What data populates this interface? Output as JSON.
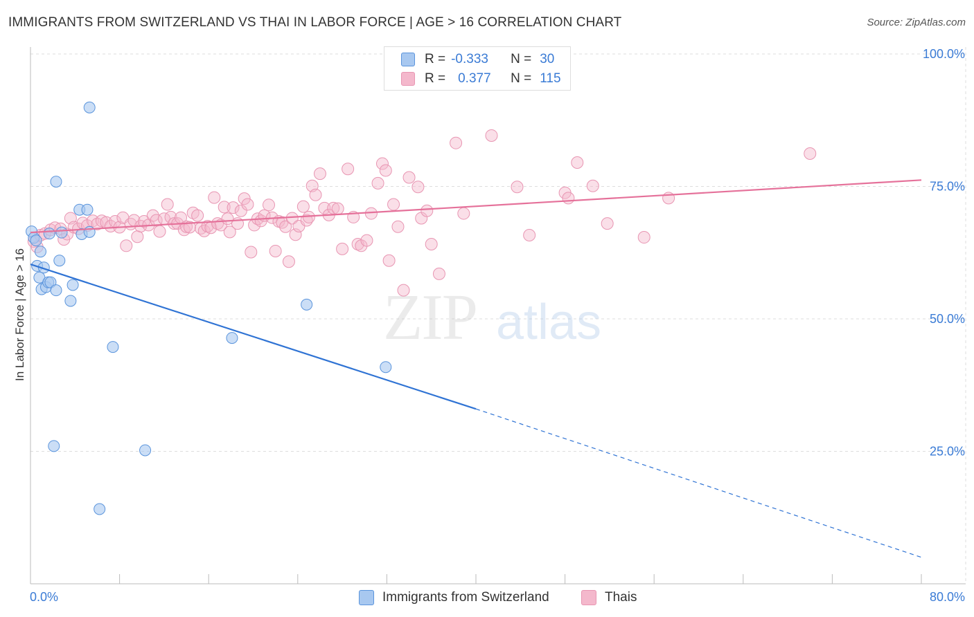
{
  "title": "IMMIGRANTS FROM SWITZERLAND VS THAI IN LABOR FORCE | AGE > 16 CORRELATION CHART",
  "source": "Source: ZipAtlas.com",
  "watermark": {
    "zip": "ZIP",
    "atlas": "atlas"
  },
  "colors": {
    "blue_fill": "#a8c8f0",
    "blue_stroke": "#5a94dc",
    "blue_line": "#2f73d4",
    "pink_fill": "#f4b8cc",
    "pink_stroke": "#e895b2",
    "pink_line": "#e5719a",
    "tick_label": "#3a7bd5",
    "grid": "#dddddd"
  },
  "legend": {
    "rows": [
      {
        "r_label": "R =",
        "r_value": "-0.333",
        "n_label": "N =",
        "n_value": "30",
        "color": "#a8c8f0",
        "border": "#5a94dc"
      },
      {
        "r_label": "R =",
        "r_value": "0.377",
        "n_label": "N =",
        "n_value": "115",
        "color": "#f4b8cc",
        "border": "#e895b2"
      }
    ]
  },
  "bottom_legend": [
    {
      "label": "Immigrants from Switzerland",
      "color": "#a8c8f0",
      "border": "#5a94dc"
    },
    {
      "label": "Thais",
      "color": "#f4b8cc",
      "border": "#e895b2"
    }
  ],
  "chart_data": {
    "type": "scatter",
    "title": "IMMIGRANTS FROM SWITZERLAND VS THAI IN LABOR FORCE | AGE > 16 CORRELATION CHART",
    "xlabel": "",
    "ylabel": "In Labor Force | Age > 16",
    "xlim": [
      0,
      80
    ],
    "ylim": [
      0,
      100
    ],
    "x_tick_labels": [
      "0.0%",
      "80.0%"
    ],
    "y_ticks": [
      25,
      50,
      75,
      100
    ],
    "y_tick_labels": [
      "25.0%",
      "50.0%",
      "75.0%",
      "100.0%"
    ],
    "grid": true,
    "legend_position": "top-center",
    "series": [
      {
        "name": "Immigrants from Switzerland",
        "r": -0.333,
        "n": 30,
        "trend": {
          "x0": 0,
          "y0": 60.3,
          "x1": 40,
          "y1": 33.0,
          "dashed_to_x": 80,
          "dashed_to_y": 5.0
        },
        "points": [
          [
            0.1,
            66.5
          ],
          [
            0.3,
            65.3
          ],
          [
            0.5,
            64.8
          ],
          [
            0.6,
            60.0
          ],
          [
            0.8,
            57.8
          ],
          [
            1.0,
            55.6
          ],
          [
            1.2,
            59.7
          ],
          [
            1.4,
            56.0
          ],
          [
            1.6,
            56.9
          ],
          [
            1.8,
            56.9
          ],
          [
            2.1,
            26.0
          ],
          [
            2.3,
            55.4
          ],
          [
            2.6,
            61.0
          ],
          [
            2.8,
            66.3
          ],
          [
            3.6,
            53.4
          ],
          [
            3.8,
            56.4
          ],
          [
            4.4,
            70.6
          ],
          [
            4.6,
            66.0
          ],
          [
            5.1,
            70.6
          ],
          [
            5.3,
            66.4
          ],
          [
            5.3,
            89.9
          ],
          [
            2.3,
            75.9
          ],
          [
            6.2,
            14.1
          ],
          [
            7.4,
            44.7
          ],
          [
            10.3,
            25.2
          ],
          [
            18.1,
            46.4
          ],
          [
            24.8,
            52.7
          ],
          [
            31.9,
            40.9
          ],
          [
            1.7,
            66.1
          ],
          [
            0.9,
            62.7
          ]
        ]
      },
      {
        "name": "Thais",
        "r": 0.377,
        "n": 115,
        "trend": {
          "x0": 0,
          "y0": 66.3,
          "x1": 80,
          "y1": 76.2
        },
        "points": [
          [
            0.3,
            64.6
          ],
          [
            0.6,
            63.6
          ],
          [
            0.9,
            65.8
          ],
          [
            1.3,
            66.1
          ],
          [
            1.8,
            66.8
          ],
          [
            2.2,
            67.2
          ],
          [
            2.7,
            67.0
          ],
          [
            3.0,
            65.0
          ],
          [
            3.3,
            66.0
          ],
          [
            3.6,
            69.0
          ],
          [
            3.9,
            67.3
          ],
          [
            4.3,
            67.0
          ],
          [
            4.7,
            68.1
          ],
          [
            5.1,
            67.6
          ],
          [
            5.6,
            68.5
          ],
          [
            6.0,
            67.9
          ],
          [
            6.4,
            68.5
          ],
          [
            6.8,
            68.2
          ],
          [
            7.2,
            67.5
          ],
          [
            7.6,
            68.4
          ],
          [
            8.0,
            67.3
          ],
          [
            8.3,
            69.1
          ],
          [
            8.6,
            63.8
          ],
          [
            9.0,
            67.9
          ],
          [
            9.3,
            68.6
          ],
          [
            9.6,
            65.5
          ],
          [
            9.9,
            67.5
          ],
          [
            10.2,
            68.4
          ],
          [
            10.6,
            67.7
          ],
          [
            11.0,
            69.5
          ],
          [
            11.3,
            68.6
          ],
          [
            11.6,
            66.5
          ],
          [
            12.0,
            68.9
          ],
          [
            12.3,
            71.6
          ],
          [
            12.6,
            69.2
          ],
          [
            12.9,
            68.0
          ],
          [
            13.2,
            68.0
          ],
          [
            13.5,
            69.1
          ],
          [
            13.8,
            66.8
          ],
          [
            14.0,
            67.4
          ],
          [
            14.3,
            67.3
          ],
          [
            14.6,
            70.0
          ],
          [
            15.0,
            69.5
          ],
          [
            15.3,
            67.1
          ],
          [
            15.6,
            66.6
          ],
          [
            15.9,
            67.5
          ],
          [
            16.2,
            67.2
          ],
          [
            16.5,
            72.9
          ],
          [
            16.8,
            68.0
          ],
          [
            17.1,
            67.7
          ],
          [
            17.4,
            71.1
          ],
          [
            17.7,
            68.9
          ],
          [
            17.9,
            66.4
          ],
          [
            18.2,
            71.0
          ],
          [
            18.6,
            68.0
          ],
          [
            18.9,
            70.4
          ],
          [
            19.2,
            72.7
          ],
          [
            19.5,
            71.6
          ],
          [
            19.8,
            62.6
          ],
          [
            20.1,
            67.7
          ],
          [
            20.4,
            68.9
          ],
          [
            20.7,
            68.5
          ],
          [
            21.0,
            69.5
          ],
          [
            21.4,
            71.5
          ],
          [
            21.7,
            69.1
          ],
          [
            22.0,
            62.8
          ],
          [
            22.3,
            68.4
          ],
          [
            22.6,
            68.2
          ],
          [
            22.9,
            67.4
          ],
          [
            23.2,
            60.8
          ],
          [
            23.5,
            69.0
          ],
          [
            23.8,
            65.9
          ],
          [
            24.1,
            67.5
          ],
          [
            24.5,
            71.2
          ],
          [
            24.8,
            68.6
          ],
          [
            25.0,
            69.2
          ],
          [
            25.3,
            75.1
          ],
          [
            25.6,
            73.4
          ],
          [
            26.0,
            77.4
          ],
          [
            26.4,
            70.9
          ],
          [
            26.8,
            69.6
          ],
          [
            27.2,
            70.9
          ],
          [
            27.6,
            70.8
          ],
          [
            28.0,
            63.2
          ],
          [
            28.5,
            78.3
          ],
          [
            29.0,
            69.2
          ],
          [
            29.4,
            64.1
          ],
          [
            29.7,
            63.8
          ],
          [
            30.2,
            64.8
          ],
          [
            30.6,
            69.9
          ],
          [
            31.2,
            75.6
          ],
          [
            31.6,
            79.3
          ],
          [
            31.9,
            78.0
          ],
          [
            32.2,
            61.0
          ],
          [
            32.6,
            71.6
          ],
          [
            33.0,
            67.4
          ],
          [
            33.5,
            55.4
          ],
          [
            34.0,
            76.7
          ],
          [
            34.8,
            74.9
          ],
          [
            35.1,
            69.0
          ],
          [
            35.6,
            70.4
          ],
          [
            36.0,
            64.1
          ],
          [
            36.7,
            58.5
          ],
          [
            38.2,
            83.2
          ],
          [
            38.9,
            69.9
          ],
          [
            41.4,
            84.6
          ],
          [
            43.7,
            74.9
          ],
          [
            44.8,
            65.8
          ],
          [
            48.0,
            73.8
          ],
          [
            48.3,
            72.8
          ],
          [
            49.1,
            79.5
          ],
          [
            50.5,
            75.1
          ],
          [
            51.8,
            68.0
          ],
          [
            55.1,
            65.4
          ],
          [
            57.3,
            72.8
          ],
          [
            70.0,
            81.2
          ]
        ]
      }
    ]
  }
}
